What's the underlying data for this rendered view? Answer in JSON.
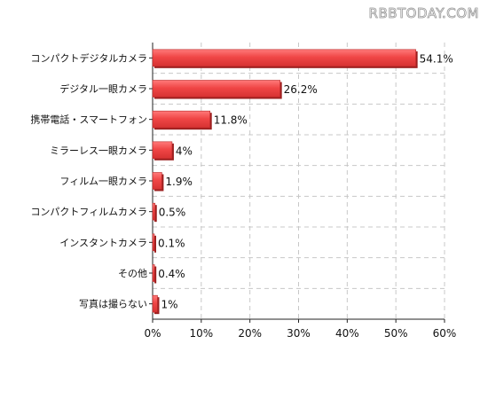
{
  "watermark": "RBBTODAY.COM",
  "chart_data": {
    "type": "bar",
    "orientation": "horizontal",
    "title": "",
    "xlabel": "",
    "ylabel": "",
    "categories": [
      "コンパクトデジタルカメラ",
      "デジタル一眼カメラ",
      "携帯電話・スマートフォン",
      "ミラーレス一眼カメラ",
      "フィルム一眼カメラ",
      "コンパクトフィルムカメラ",
      "インスタントカメラ",
      "その他",
      "写真は撮らない"
    ],
    "values": [
      54.1,
      26.2,
      11.8,
      4,
      1.9,
      0.5,
      0.1,
      0.4,
      1
    ],
    "value_labels": [
      "54.1%",
      "26.2%",
      "11.8%",
      "4%",
      "1.9%",
      "0.5%",
      "0.1%",
      "0.4%",
      "1%"
    ],
    "xlim": [
      0,
      60
    ],
    "x_ticks": [
      0,
      10,
      20,
      30,
      40,
      50,
      60
    ],
    "x_tick_labels": [
      "0%",
      "10%",
      "20%",
      "30%",
      "40%",
      "50%",
      "60%"
    ],
    "grid": true,
    "legend": "none",
    "bar_color": "#f04646",
    "bar_edge_color": "#b82828"
  }
}
